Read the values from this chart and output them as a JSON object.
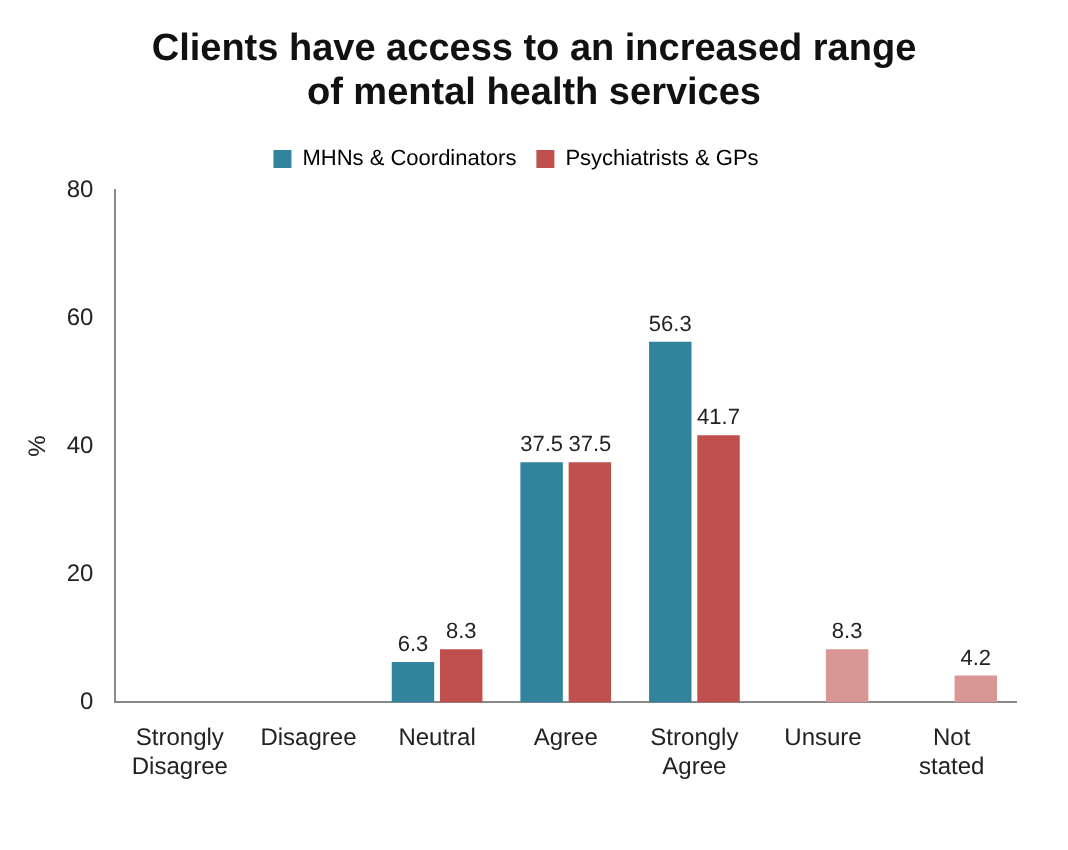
{
  "chart_data": {
    "type": "bar",
    "title": "Clients have access to an increased range of mental health services",
    "categories": [
      "Strongly Disagree",
      "Disagree",
      "Neutral",
      "Agree",
      "Strongly Agree",
      "Unsure",
      "Not stated"
    ],
    "series": [
      {
        "name": "MHNs & Coordinators",
        "color": "#31849b",
        "values": [
          null,
          null,
          6.3,
          37.5,
          56.3,
          null,
          null
        ]
      },
      {
        "name": "Psychiatrists & GPs",
        "color": "#c0504d",
        "colors": [
          "#c0504d",
          "#c0504d",
          "#c0504d",
          "#c0504d",
          "#c0504d",
          "#d99694",
          "#d99694"
        ],
        "values": [
          null,
          null,
          8.3,
          37.5,
          41.7,
          8.3,
          4.2
        ]
      }
    ],
    "ylabel": "%",
    "ylim": [
      0,
      80
    ],
    "yticks": [
      0,
      20,
      40,
      60,
      80
    ],
    "grid": false,
    "legend": "top",
    "data_labels": true
  }
}
